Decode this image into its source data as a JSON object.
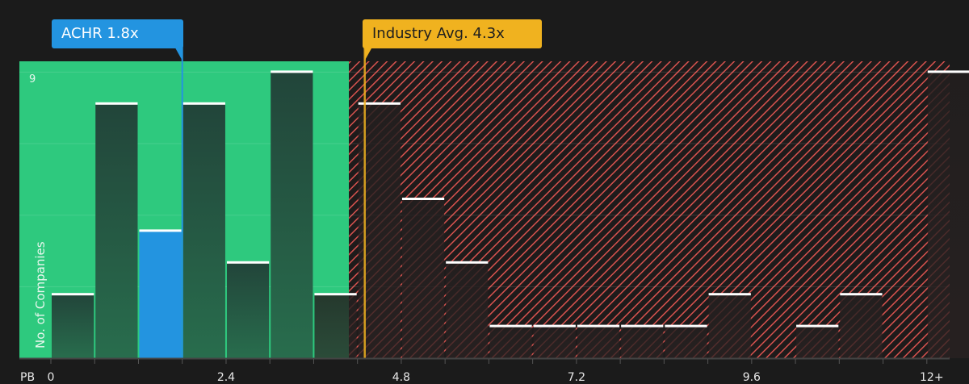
{
  "chart_data": {
    "type": "bar",
    "title": "",
    "xlabel": "PB",
    "ylabel": "No. of Companies",
    "x_tick_labels": [
      "0",
      "2.4",
      "4.8",
      "7.2",
      "9.6",
      "12+"
    ],
    "x_tick_values": [
      0,
      2.4,
      4.8,
      7.2,
      9.6,
      12
    ],
    "y_max_label": "9",
    "ylim": [
      0,
      9
    ],
    "bin_width": 0.6,
    "categories": [
      "0-0.6",
      "0.6-1.2",
      "1.2-1.8",
      "1.8-2.4",
      "2.4-3.0",
      "3.0-3.6",
      "3.6-4.2",
      "4.2-4.8",
      "4.8-5.4",
      "5.4-6.0",
      "6.0-6.6",
      "6.6-7.2",
      "7.2-7.8",
      "7.8-8.4",
      "8.4-9.0",
      "9.0-9.6",
      "9.6-10.2",
      "10.2-10.8",
      "10.8-11.4",
      "11.4-12.0",
      "12+"
    ],
    "values": [
      2,
      8,
      4,
      8,
      3,
      9,
      2,
      8,
      5,
      3,
      1,
      1,
      1,
      1,
      1,
      2,
      0,
      1,
      2,
      0,
      9
    ],
    "highlight_bin_index": 2,
    "company": {
      "ticker": "ACHR",
      "value": 1.8,
      "label": "ACHR 1.8x",
      "color": "#2394e0"
    },
    "industry_avg": {
      "value": 4.3,
      "label": "Industry Avg. 4.3x",
      "color": "#f0b21f"
    },
    "regions": [
      {
        "name": "undervalued",
        "from": 0,
        "to": 4.3,
        "color": "#2ec97e"
      },
      {
        "name": "overvalued",
        "from": 4.3,
        "to": 12.5,
        "color": "#e05252",
        "pattern": "hatched"
      }
    ],
    "grid": true,
    "gridline_values": [
      2.25,
      4.5,
      6.75,
      9
    ]
  },
  "labels": {
    "company_callout": "ACHR 1.8x",
    "industry_callout": "Industry Avg. 4.3x",
    "axis_prefix": "PB",
    "y_title": "No. of Companies",
    "y_max": "9"
  }
}
